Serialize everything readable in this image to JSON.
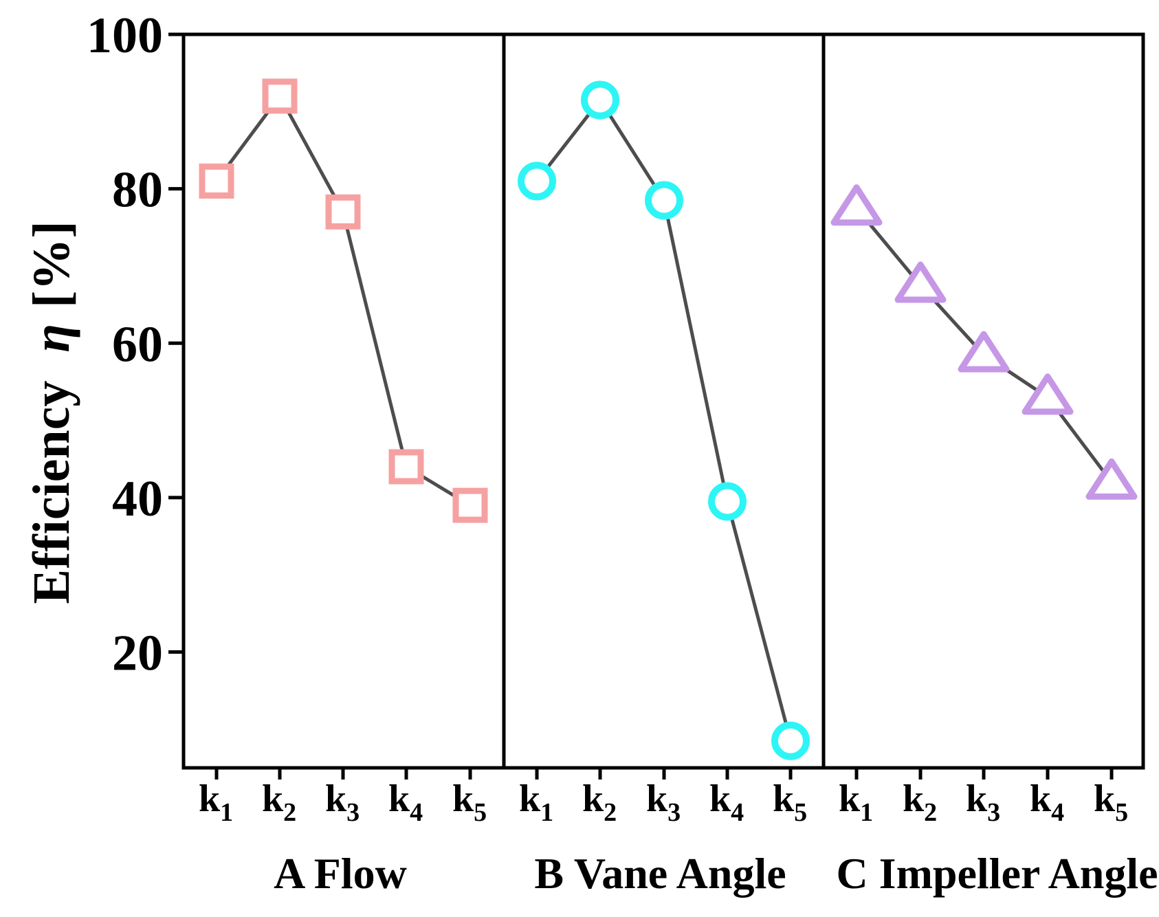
{
  "chart_data": {
    "type": "line",
    "ylabel_prefix": "Efficiency",
    "ylabel_symbol": "η",
    "ylabel_suffix": "[%]",
    "ylim": [
      5,
      100
    ],
    "yticks": [
      20,
      40,
      60,
      80,
      100
    ],
    "category_base": "k",
    "category_subs": [
      "1",
      "2",
      "3",
      "4",
      "5"
    ],
    "line_color": "#4d4d4d",
    "panels": [
      {
        "name": "A Flow",
        "marker": "square",
        "color": "#f6a1a1",
        "values": [
          81,
          92,
          77,
          44,
          39
        ]
      },
      {
        "name": "B Vane Angle",
        "marker": "circle",
        "color": "#2ef5f5",
        "values": [
          81,
          91.5,
          78.5,
          39.5,
          8.5
        ]
      },
      {
        "name": "C Impeller Angle",
        "marker": "triangle",
        "color": "#c597e6",
        "values": [
          77.5,
          67.5,
          58.5,
          53,
          42
        ]
      }
    ]
  }
}
